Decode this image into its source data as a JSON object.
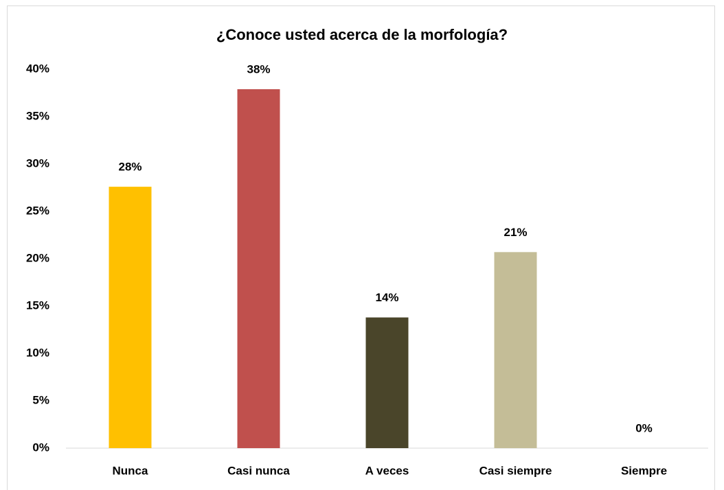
{
  "chart_data": {
    "type": "bar",
    "title": "¿Conoce usted acerca de la morfología?",
    "categories": [
      "Nunca",
      "Casi nunca",
      "A veces",
      "Casi siempre",
      "Siempre"
    ],
    "values": [
      27.6,
      37.9,
      13.8,
      20.7,
      0
    ],
    "value_labels": [
      "28%",
      "38%",
      "14%",
      "21%",
      "0%"
    ],
    "colors": [
      "#ffc000",
      "#c0504d",
      "#4a452a",
      "#c4bd97",
      "#7f7f7f"
    ],
    "ylim": [
      0,
      40
    ],
    "yticks": [
      {
        "value": 0,
        "label": "0%"
      },
      {
        "value": 5,
        "label": "5%"
      },
      {
        "value": 10,
        "label": "10%"
      },
      {
        "value": 15,
        "label": "15%"
      },
      {
        "value": 20,
        "label": "20%"
      },
      {
        "value": 25,
        "label": "25%"
      },
      {
        "value": 30,
        "label": "30%"
      },
      {
        "value": 35,
        "label": "35%"
      },
      {
        "value": 40,
        "label": "40%"
      }
    ],
    "grid": false
  }
}
